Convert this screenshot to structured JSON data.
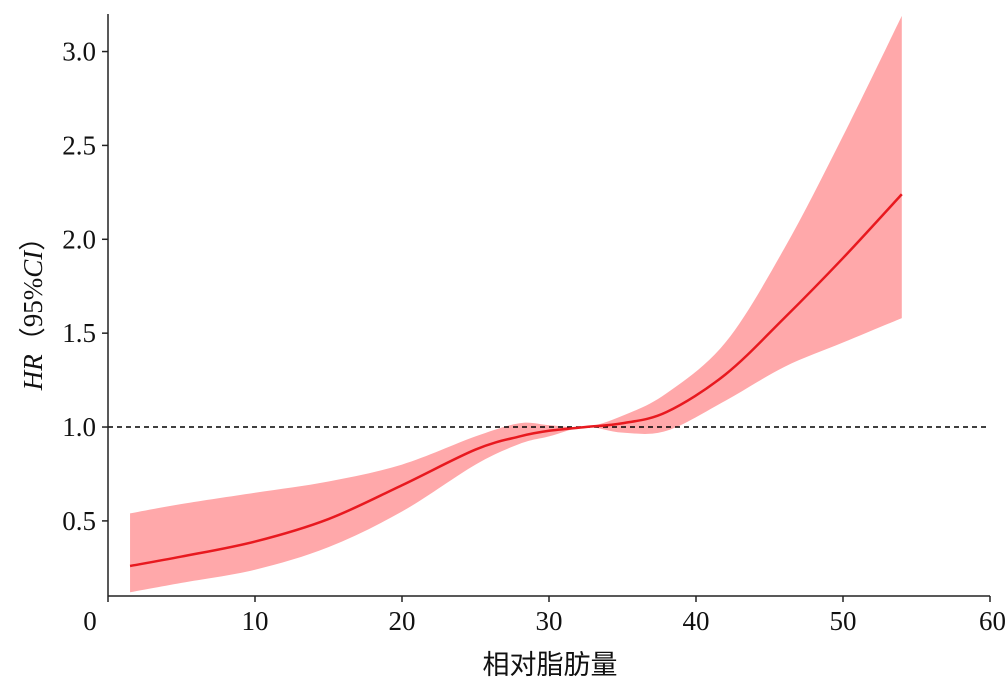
{
  "chart_data": {
    "type": "line",
    "title": "",
    "xlabel": "相对脂肪量",
    "ylabel": "HR（95%CI）",
    "ylabel_parts": [
      "HR",
      "（",
      "95%",
      "CI",
      "）"
    ],
    "xlim": [
      0,
      60
    ],
    "ylim": [
      0.1,
      3.2
    ],
    "x_ticks": [
      0,
      10,
      20,
      30,
      40,
      50,
      60
    ],
    "x_tick_labels": [
      "0",
      "10",
      "20",
      "30",
      "40",
      "50",
      "60"
    ],
    "y_ticks": [
      0.5,
      1.0,
      1.5,
      2.0,
      2.5,
      3.0
    ],
    "y_tick_labels": [
      "0.5",
      "1.0",
      "1.5",
      "2.0",
      "2.5",
      "3.0"
    ],
    "reference_line": {
      "y": 1.0,
      "style": "dashed",
      "color": "#000000"
    },
    "grid": false,
    "legend": "none",
    "series": [
      {
        "line_color": "#e8191f",
        "band_color": "#ffa8aa",
        "x": [
          1.5,
          5,
          10,
          15,
          20,
          25,
          28,
          30,
          32.5,
          35,
          38,
          42,
          46,
          50,
          54
        ],
        "y": [
          0.26,
          0.31,
          0.39,
          0.51,
          0.69,
          0.88,
          0.95,
          0.98,
          1.0,
          1.02,
          1.08,
          1.28,
          1.58,
          1.9,
          2.24
        ],
        "lower": [
          0.12,
          0.17,
          0.24,
          0.36,
          0.55,
          0.8,
          0.91,
          0.95,
          1.0,
          0.97,
          0.98,
          1.14,
          1.32,
          1.45,
          1.58
        ],
        "upper": [
          0.54,
          0.59,
          0.65,
          0.71,
          0.8,
          0.95,
          1.02,
          1.01,
          1.0,
          1.06,
          1.18,
          1.45,
          1.95,
          2.55,
          3.19
        ]
      }
    ]
  }
}
